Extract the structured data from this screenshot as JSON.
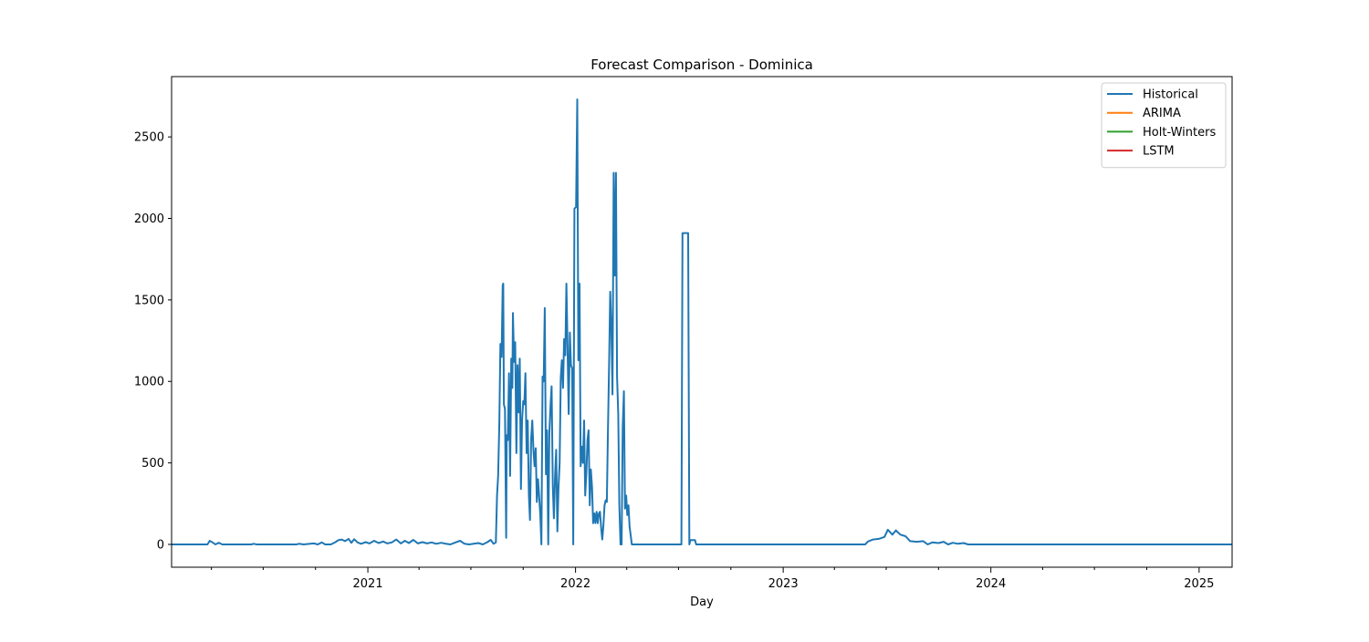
{
  "chart_data": {
    "type": "line",
    "title": "Forecast Comparison - Dominica",
    "xlabel": "Day",
    "ylabel": "",
    "x_axis": {
      "type": "date",
      "range": [
        "2020-01-22",
        "2025-02-28"
      ],
      "major_ticks": [
        "2021",
        "2022",
        "2023",
        "2024",
        "2025"
      ]
    },
    "y_axis": {
      "range": [
        -140,
        2870
      ],
      "ticks": [
        0,
        500,
        1000,
        1500,
        2000,
        2500
      ]
    },
    "grid": false,
    "legend": {
      "placement": "top-right",
      "entries": [
        {
          "label": "Historical",
          "color": "#1f77b4"
        },
        {
          "label": "ARIMA",
          "color": "#ff7f0e"
        },
        {
          "label": "Holt-Winters",
          "color": "#2ca02c"
        },
        {
          "label": "LSTM",
          "color": "#d62728"
        }
      ]
    },
    "series": [
      {
        "name": "Historical",
        "color": "#1f77b4",
        "points": [
          [
            "2020-01-22",
            0
          ],
          [
            "2020-03-25",
            0
          ],
          [
            "2020-03-29",
            22
          ],
          [
            "2020-04-04",
            10
          ],
          [
            "2020-04-08",
            0
          ],
          [
            "2020-04-14",
            10
          ],
          [
            "2020-04-20",
            0
          ],
          [
            "2020-06-10",
            0
          ],
          [
            "2020-06-14",
            4
          ],
          [
            "2020-06-20",
            0
          ],
          [
            "2020-08-28",
            0
          ],
          [
            "2020-09-02",
            4
          ],
          [
            "2020-09-10",
            0
          ],
          [
            "2020-09-28",
            6
          ],
          [
            "2020-10-05",
            0
          ],
          [
            "2020-10-12",
            12
          ],
          [
            "2020-10-18",
            0
          ],
          [
            "2020-10-28",
            0
          ],
          [
            "2020-11-05",
            14
          ],
          [
            "2020-11-10",
            26
          ],
          [
            "2020-11-16",
            30
          ],
          [
            "2020-11-22",
            20
          ],
          [
            "2020-11-28",
            34
          ],
          [
            "2020-12-03",
            10
          ],
          [
            "2020-12-08",
            32
          ],
          [
            "2020-12-14",
            12
          ],
          [
            "2020-12-20",
            4
          ],
          [
            "2020-12-28",
            14
          ],
          [
            "2021-01-04",
            6
          ],
          [
            "2021-01-12",
            22
          ],
          [
            "2021-01-20",
            8
          ],
          [
            "2021-01-28",
            18
          ],
          [
            "2021-02-04",
            6
          ],
          [
            "2021-02-12",
            12
          ],
          [
            "2021-02-20",
            30
          ],
          [
            "2021-02-28",
            6
          ],
          [
            "2021-03-07",
            22
          ],
          [
            "2021-03-14",
            8
          ],
          [
            "2021-03-22",
            28
          ],
          [
            "2021-03-30",
            6
          ],
          [
            "2021-04-07",
            14
          ],
          [
            "2021-04-15",
            6
          ],
          [
            "2021-04-23",
            12
          ],
          [
            "2021-05-01",
            4
          ],
          [
            "2021-05-10",
            10
          ],
          [
            "2021-05-18",
            4
          ],
          [
            "2021-05-26",
            0
          ],
          [
            "2021-06-04",
            12
          ],
          [
            "2021-06-12",
            22
          ],
          [
            "2021-06-20",
            4
          ],
          [
            "2021-06-28",
            0
          ],
          [
            "2021-07-06",
            4
          ],
          [
            "2021-07-14",
            8
          ],
          [
            "2021-07-22",
            0
          ],
          [
            "2021-07-30",
            14
          ],
          [
            "2021-08-05",
            28
          ],
          [
            "2021-08-10",
            4
          ],
          [
            "2021-08-14",
            12
          ],
          [
            "2021-08-16",
            300
          ],
          [
            "2021-08-18",
            420
          ],
          [
            "2021-08-20",
            740
          ],
          [
            "2021-08-22",
            1230
          ],
          [
            "2021-08-24",
            1150
          ],
          [
            "2021-08-26",
            1590
          ],
          [
            "2021-08-27",
            1600
          ],
          [
            "2021-08-28",
            860
          ],
          [
            "2021-08-30",
            830
          ],
          [
            "2021-09-01",
            40
          ],
          [
            "2021-09-02",
            670
          ],
          [
            "2021-09-04",
            640
          ],
          [
            "2021-09-06",
            1050
          ],
          [
            "2021-09-08",
            420
          ],
          [
            "2021-09-10",
            1140
          ],
          [
            "2021-09-12",
            960
          ],
          [
            "2021-09-13",
            1420
          ],
          [
            "2021-09-15",
            1120
          ],
          [
            "2021-09-17",
            1240
          ],
          [
            "2021-09-19",
            560
          ],
          [
            "2021-09-21",
            1100
          ],
          [
            "2021-09-23",
            810
          ],
          [
            "2021-09-25",
            1140
          ],
          [
            "2021-09-27",
            340
          ],
          [
            "2021-09-29",
            760
          ],
          [
            "2021-10-01",
            880
          ],
          [
            "2021-10-03",
            860
          ],
          [
            "2021-10-05",
            1050
          ],
          [
            "2021-10-07",
            560
          ],
          [
            "2021-10-09",
            760
          ],
          [
            "2021-10-11",
            300
          ],
          [
            "2021-10-13",
            150
          ],
          [
            "2021-10-15",
            650
          ],
          [
            "2021-10-17",
            760
          ],
          [
            "2021-10-19",
            580
          ],
          [
            "2021-10-21",
            480
          ],
          [
            "2021-10-23",
            590
          ],
          [
            "2021-10-25",
            260
          ],
          [
            "2021-10-27",
            400
          ],
          [
            "2021-10-29",
            300
          ],
          [
            "2021-10-31",
            180
          ],
          [
            "2021-11-02",
            0
          ],
          [
            "2021-11-04",
            1030
          ],
          [
            "2021-11-06",
            1000
          ],
          [
            "2021-11-08",
            1450
          ],
          [
            "2021-11-10",
            430
          ],
          [
            "2021-11-12",
            700
          ],
          [
            "2021-11-14",
            0
          ],
          [
            "2021-11-16",
            680
          ],
          [
            "2021-11-18",
            850
          ],
          [
            "2021-11-20",
            970
          ],
          [
            "2021-11-22",
            360
          ],
          [
            "2021-11-24",
            160
          ],
          [
            "2021-11-26",
            420
          ],
          [
            "2021-11-28",
            580
          ],
          [
            "2021-11-30",
            80
          ],
          [
            "2021-12-02",
            340
          ],
          [
            "2021-12-04",
            500
          ],
          [
            "2021-12-06",
            1020
          ],
          [
            "2021-12-08",
            1130
          ],
          [
            "2021-12-10",
            960
          ],
          [
            "2021-12-12",
            1260
          ],
          [
            "2021-12-14",
            1160
          ],
          [
            "2021-12-16",
            1600
          ],
          [
            "2021-12-18",
            1200
          ],
          [
            "2021-12-20",
            800
          ],
          [
            "2021-12-22",
            1300
          ],
          [
            "2021-12-24",
            1100
          ],
          [
            "2021-12-26",
            1080
          ],
          [
            "2021-12-28",
            0
          ],
          [
            "2021-12-30",
            2060
          ],
          [
            "2022-01-02",
            2070
          ],
          [
            "2022-01-04",
            2730
          ],
          [
            "2022-01-06",
            1130
          ],
          [
            "2022-01-08",
            1600
          ],
          [
            "2022-01-10",
            480
          ],
          [
            "2022-01-12",
            600
          ],
          [
            "2022-01-14",
            500
          ],
          [
            "2022-01-16",
            760
          ],
          [
            "2022-01-18",
            300
          ],
          [
            "2022-01-20",
            440
          ],
          [
            "2022-01-22",
            640
          ],
          [
            "2022-01-24",
            700
          ],
          [
            "2022-01-26",
            240
          ],
          [
            "2022-01-28",
            460
          ],
          [
            "2022-01-30",
            350
          ],
          [
            "2022-02-01",
            130
          ],
          [
            "2022-02-03",
            190
          ],
          [
            "2022-02-05",
            130
          ],
          [
            "2022-02-07",
            200
          ],
          [
            "2022-02-09",
            130
          ],
          [
            "2022-02-11",
            190
          ],
          [
            "2022-02-13",
            200
          ],
          [
            "2022-02-15",
            100
          ],
          [
            "2022-02-17",
            30
          ],
          [
            "2022-02-19",
            120
          ],
          [
            "2022-02-21",
            240
          ],
          [
            "2022-02-23",
            270
          ],
          [
            "2022-02-25",
            260
          ],
          [
            "2022-02-27",
            690
          ],
          [
            "2022-03-01",
            1110
          ],
          [
            "2022-03-03",
            1550
          ],
          [
            "2022-03-05",
            1320
          ],
          [
            "2022-03-07",
            920
          ],
          [
            "2022-03-09",
            2280
          ],
          [
            "2022-03-11",
            1650
          ],
          [
            "2022-03-13",
            2280
          ],
          [
            "2022-03-15",
            1030
          ],
          [
            "2022-03-17",
            800
          ],
          [
            "2022-03-19",
            240
          ],
          [
            "2022-03-21",
            0
          ],
          [
            "2022-03-23",
            0
          ],
          [
            "2022-03-25",
            720
          ],
          [
            "2022-03-27",
            940
          ],
          [
            "2022-03-29",
            220
          ],
          [
            "2022-03-31",
            300
          ],
          [
            "2022-04-02",
            180
          ],
          [
            "2022-04-04",
            240
          ],
          [
            "2022-04-06",
            110
          ],
          [
            "2022-04-10",
            0
          ],
          [
            "2022-07-06",
            0
          ],
          [
            "2022-07-08",
            1910
          ],
          [
            "2022-07-18",
            1910
          ],
          [
            "2022-07-20",
            0
          ],
          [
            "2022-07-22",
            26
          ],
          [
            "2022-07-30",
            26
          ],
          [
            "2022-08-01",
            0
          ],
          [
            "2023-05-25",
            0
          ],
          [
            "2023-05-30",
            18
          ],
          [
            "2023-06-08",
            30
          ],
          [
            "2023-06-18",
            34
          ],
          [
            "2023-06-28",
            46
          ],
          [
            "2023-07-04",
            90
          ],
          [
            "2023-07-12",
            60
          ],
          [
            "2023-07-18",
            86
          ],
          [
            "2023-07-26",
            60
          ],
          [
            "2023-08-04",
            50
          ],
          [
            "2023-08-12",
            20
          ],
          [
            "2023-08-24",
            16
          ],
          [
            "2023-09-04",
            20
          ],
          [
            "2023-09-12",
            0
          ],
          [
            "2023-09-20",
            12
          ],
          [
            "2023-10-01",
            8
          ],
          [
            "2023-10-10",
            16
          ],
          [
            "2023-10-18",
            0
          ],
          [
            "2023-10-26",
            10
          ],
          [
            "2023-11-04",
            4
          ],
          [
            "2023-11-14",
            8
          ],
          [
            "2023-11-22",
            0
          ],
          [
            "2025-02-28",
            0
          ]
        ]
      },
      {
        "name": "ARIMA",
        "color": "#ff7f0e",
        "points": []
      },
      {
        "name": "Holt-Winters",
        "color": "#2ca02c",
        "points": []
      },
      {
        "name": "LSTM",
        "color": "#d62728",
        "points": []
      }
    ]
  }
}
